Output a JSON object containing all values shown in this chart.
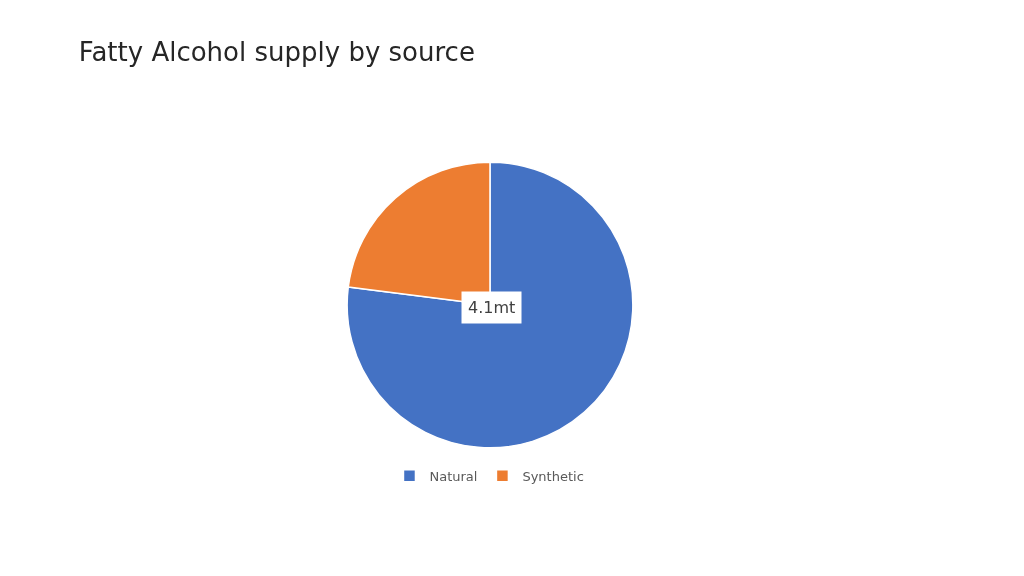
{
  "chart_data": {
    "type": "pie",
    "title": "Fatty Alcohol supply by source",
    "categories": [
      "Natural",
      "Synthetic"
    ],
    "values": [
      77,
      23
    ],
    "colors": [
      "#4472c4",
      "#ed7d31"
    ],
    "annotations": [
      "4.1mt"
    ],
    "legend": "bottom"
  }
}
